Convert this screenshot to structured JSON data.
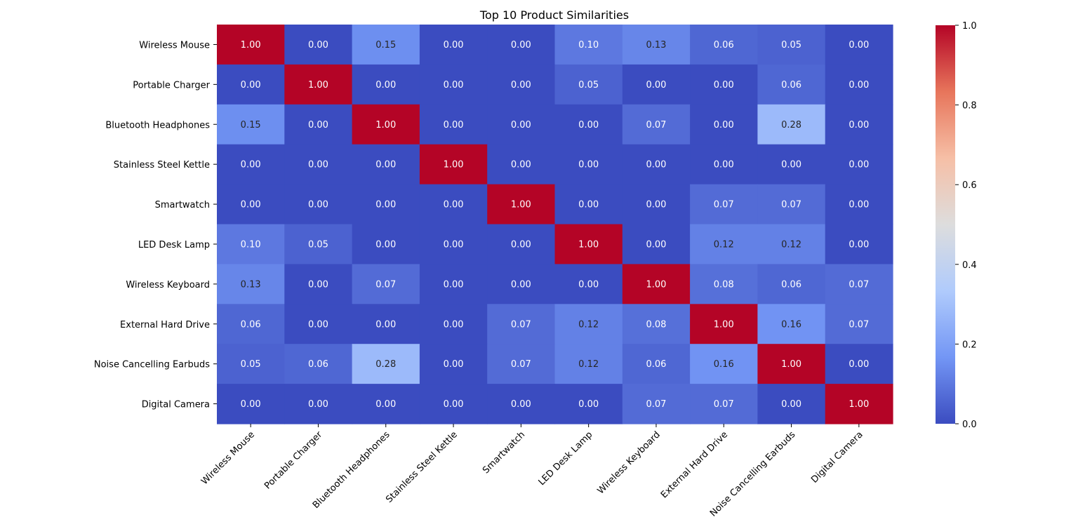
{
  "chart_data": {
    "type": "heatmap",
    "title": "Top 10 Product Similarities",
    "xlabel": "",
    "ylabel": "",
    "rows": [
      "Wireless Mouse",
      "Portable Charger",
      "Bluetooth Headphones",
      "Stainless Steel Kettle",
      "Smartwatch",
      "LED Desk Lamp",
      "Wireless Keyboard",
      "External Hard Drive",
      "Noise Cancelling Earbuds",
      "Digital Camera"
    ],
    "columns": [
      "Wireless Mouse",
      "Portable Charger",
      "Bluetooth Headphones",
      "Stainless Steel Kettle",
      "Smartwatch",
      "LED Desk Lamp",
      "Wireless Keyboard",
      "External Hard Drive",
      "Noise Cancelling Earbuds",
      "Digital Camera"
    ],
    "values": [
      [
        1.0,
        0.0,
        0.15,
        0.0,
        0.0,
        0.1,
        0.13,
        0.06,
        0.05,
        0.0
      ],
      [
        0.0,
        1.0,
        0.0,
        0.0,
        0.0,
        0.05,
        0.0,
        0.0,
        0.06,
        0.0
      ],
      [
        0.15,
        0.0,
        1.0,
        0.0,
        0.0,
        0.0,
        0.07,
        0.0,
        0.28,
        0.0
      ],
      [
        0.0,
        0.0,
        0.0,
        1.0,
        0.0,
        0.0,
        0.0,
        0.0,
        0.0,
        0.0
      ],
      [
        0.0,
        0.0,
        0.0,
        0.0,
        1.0,
        0.0,
        0.0,
        0.07,
        0.07,
        0.0
      ],
      [
        0.1,
        0.05,
        0.0,
        0.0,
        0.0,
        1.0,
        0.0,
        0.12,
        0.12,
        0.0
      ],
      [
        0.13,
        0.0,
        0.07,
        0.0,
        0.0,
        0.0,
        1.0,
        0.08,
        0.06,
        0.07
      ],
      [
        0.06,
        0.0,
        0.0,
        0.0,
        0.07,
        0.12,
        0.08,
        1.0,
        0.16,
        0.07
      ],
      [
        0.05,
        0.06,
        0.28,
        0.0,
        0.07,
        0.12,
        0.06,
        0.16,
        1.0,
        0.0
      ],
      [
        0.0,
        0.0,
        0.0,
        0.0,
        0.0,
        0.0,
        0.07,
        0.07,
        0.0,
        1.0
      ]
    ],
    "value_range": [
      0.0,
      1.0
    ],
    "colormap": "coolwarm",
    "colormap_stops": [
      "#3b4cc0",
      "#7396f5",
      "#b0cbfc",
      "#dddddd",
      "#f6bfa6",
      "#e7755b",
      "#b40426"
    ],
    "annotation_format": "2 decimals",
    "colorbar_ticks": [
      "0.0",
      "0.2",
      "0.4",
      "0.6",
      "0.8",
      "1.0"
    ],
    "colorbar_tick_values": [
      0.0,
      0.2,
      0.4,
      0.6,
      0.8,
      1.0
    ],
    "grid": false,
    "colorbar_placement": "right"
  }
}
